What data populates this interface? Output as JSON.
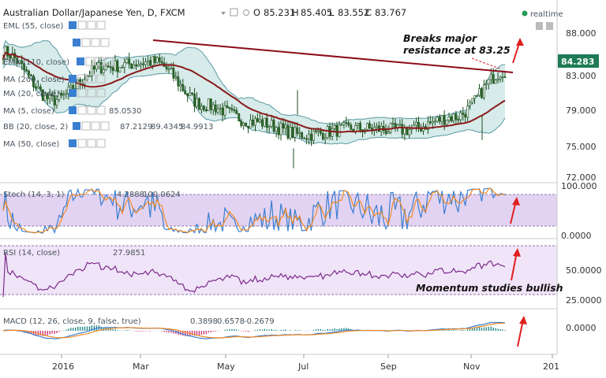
{
  "header": {
    "title": "Australian Dollar/Japanese Yen, D, FXCM",
    "o_label": "O",
    "o_value": "85.231",
    "h_label": "H",
    "h_value": "85.405",
    "l_label": "L",
    "l_value": "83.552",
    "c_label": "C",
    "c_value": "83.767",
    "realtime": "realtime"
  },
  "indicators": {
    "eml1": "EML (55, close)",
    "ema110": "EMA (110, close)",
    "ma200": "MA (200, close)",
    "ma20": "MA (20, close)",
    "ma20_value": "85.0530",
    "ma5": "MA (5, close)",
    "bb": "BB (20, close, 2)",
    "bb_values": [
      "87.2129",
      "89.4345",
      "84.9913"
    ],
    "ma50": "MA (50, close)"
  },
  "price_badge": "84.283",
  "price_axis": [
    "88.000",
    "83.000",
    "79.000",
    "75.000",
    "72.000"
  ],
  "stoch": {
    "label": "Stoch (14, 3, 1)",
    "values": [
      "4.2888",
      "100.0624"
    ],
    "axis": [
      "100.000",
      "0.0000"
    ]
  },
  "rsi": {
    "label": "RSI (14, close)",
    "value": "27.9851",
    "axis": [
      "50.0000",
      "25.0000"
    ]
  },
  "macd": {
    "label": "MACD (12, 26, close, 9, false, true)",
    "values": [
      "0.3898",
      "0.6578",
      "-0.2679"
    ],
    "axis": [
      "0.0000"
    ]
  },
  "time_axis": [
    "2016",
    "Mar",
    "May",
    "Jul",
    "Sep",
    "Nov",
    "201"
  ],
  "annotations": {
    "breakout_line1": "Breaks major",
    "breakout_line2": "resistance at 83.25",
    "momentum": "Momentum studies bullish"
  },
  "colors": {
    "candle": "#1a4d1a",
    "candle_body_up": "#2d6b2d",
    "bb_fill": "#cfe8e6",
    "bb_line": "#5a9aa3",
    "ma_line": "#8a1a1a",
    "trendline": "#8b0c16",
    "stoch_fill": "#e3d3f2",
    "rsi_fill": "#f0e4f8",
    "rsi_line": "#7b2b8b",
    "stoch_k": "#3a7fd0",
    "stoch_d": "#f08a24",
    "macd_line": "#3a7fd0",
    "signal_line": "#f08a24",
    "hist_pos": "#2a8a8a",
    "hist_neg": "#c93a7a",
    "arrow": "#e02020",
    "price_badge": "#1e7b56"
  },
  "chart_data": {
    "type": "line",
    "symbol": "AUDJPY",
    "timeframe": "D",
    "x": [
      "2016-01",
      "2016-02",
      "2016-03",
      "2016-04",
      "2016-05",
      "2016-06",
      "2016-07",
      "2016-08",
      "2016-09",
      "2016-10",
      "2016-11"
    ],
    "series": [
      {
        "values": [
          86.6,
          80.8,
          84.8,
          85.4,
          80.2,
          78.2,
          76.6,
          77.4,
          77.2,
          78.8,
          84.3
        ]
      }
    ],
    "ylim": [
      72,
      90
    ]
  }
}
